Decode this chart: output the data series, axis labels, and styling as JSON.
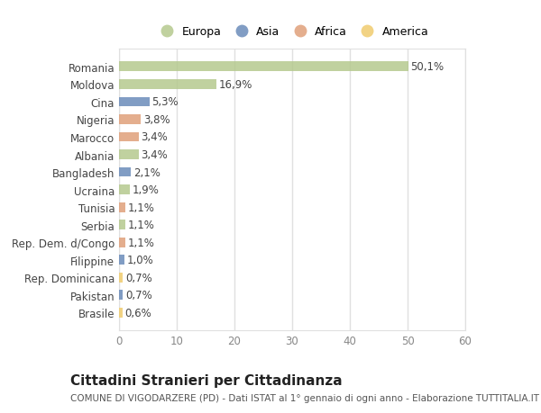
{
  "countries": [
    "Romania",
    "Moldova",
    "Cina",
    "Nigeria",
    "Marocco",
    "Albania",
    "Bangladesh",
    "Ucraina",
    "Tunisia",
    "Serbia",
    "Rep. Dem. d/Congo",
    "Filippine",
    "Rep. Dominicana",
    "Pakistan",
    "Brasile"
  ],
  "values": [
    50.1,
    16.9,
    5.3,
    3.8,
    3.4,
    3.4,
    2.1,
    1.9,
    1.1,
    1.1,
    1.1,
    1.0,
    0.7,
    0.7,
    0.6
  ],
  "labels": [
    "50,1%",
    "16,9%",
    "5,3%",
    "3,8%",
    "3,4%",
    "3,4%",
    "2,1%",
    "1,9%",
    "1,1%",
    "1,1%",
    "1,1%",
    "1,0%",
    "0,7%",
    "0,7%",
    "0,6%"
  ],
  "categories": [
    "Europa",
    "Europa",
    "Asia",
    "Africa",
    "Africa",
    "Europa",
    "Asia",
    "Europa",
    "Africa",
    "Europa",
    "Africa",
    "Asia",
    "America",
    "Asia",
    "America"
  ],
  "category_colors": {
    "Europa": "#b5c98e",
    "Asia": "#6b8cba",
    "Africa": "#e0a07a",
    "America": "#f0cc6e"
  },
  "legend_order": [
    "Europa",
    "Asia",
    "Africa",
    "America"
  ],
  "title": "Cittadini Stranieri per Cittadinanza",
  "subtitle": "COMUNE DI VIGODARZERE (PD) - Dati ISTAT al 1° gennaio di ogni anno - Elaborazione TUTTITALIA.IT",
  "xlim": [
    0,
    60
  ],
  "xticks": [
    0,
    10,
    20,
    30,
    40,
    50,
    60
  ],
  "background_color": "#ffffff",
  "grid_color": "#e0e0e0",
  "title_fontsize": 11,
  "subtitle_fontsize": 7.5,
  "label_fontsize": 8.5,
  "tick_fontsize": 8.5,
  "legend_fontsize": 9
}
